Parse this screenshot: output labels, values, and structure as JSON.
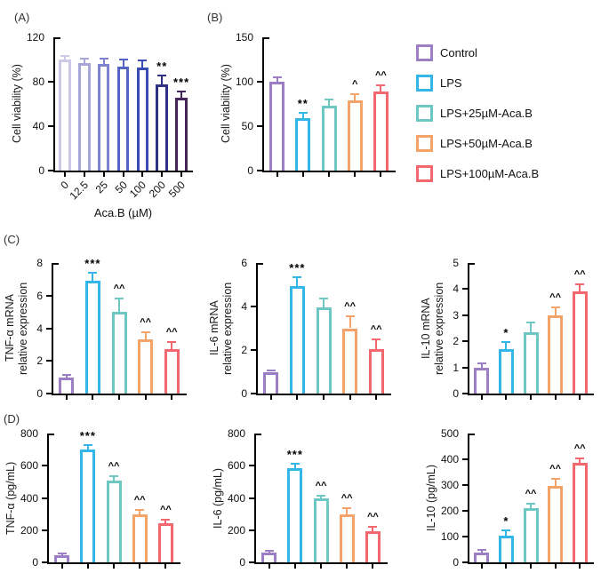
{
  "figure": {
    "panels": {
      "a": "(A)",
      "b": "(B)",
      "c": "(C)",
      "d": "(D)"
    }
  },
  "legend": {
    "items": [
      {
        "label": "Control",
        "color": "#9b7ec3"
      },
      {
        "label": "LPS",
        "color": "#35b6e9"
      },
      {
        "label": "LPS+25µM-Aca.B",
        "color": "#6fc7c3"
      },
      {
        "label": "LPS+50µM-Aca.B",
        "color": "#f5a469"
      },
      {
        "label": "LPS+100µM-Aca.B",
        "color": "#f1686e"
      }
    ]
  },
  "chart_data": [
    {
      "id": "A",
      "type": "bar",
      "title": "",
      "ylabel": "Cell viability (%)",
      "ylabel2": "",
      "xlabel": "Aca.B (µM)",
      "categories": [
        "0",
        "12.5",
        "25",
        "50",
        "100",
        "200",
        "500"
      ],
      "values": [
        100,
        97,
        96,
        94,
        93,
        78,
        66
      ],
      "errors": [
        3,
        4,
        5,
        6,
        6,
        8,
        5
      ],
      "annotations": [
        "",
        "",
        "",
        "",
        "",
        "**",
        "***"
      ],
      "colors": [
        "#cdc9e6",
        "#a8a6d8",
        "#7e82cf",
        "#5563c2",
        "#3b4bb4",
        "#2d3084",
        "#45265b"
      ],
      "ylim": [
        0,
        120
      ],
      "yticks": [
        0,
        40,
        80,
        120
      ],
      "xticklabels_visible": true,
      "xticklabel_rotation": 45,
      "grid": false
    },
    {
      "id": "B",
      "type": "bar",
      "title": "",
      "ylabel": "Cell viability (%)",
      "ylabel2": "",
      "xlabel": "",
      "categories": [
        "Control",
        "LPS",
        "LPS+25µM-Aca.B",
        "LPS+50µM-Aca.B",
        "LPS+100µM-Aca.B"
      ],
      "values": [
        100,
        59,
        73,
        79,
        89
      ],
      "errors": [
        5,
        6,
        7,
        7,
        7
      ],
      "annotations": [
        "",
        "**",
        "",
        "^",
        "^^"
      ],
      "colors": [
        "#9b7ec3",
        "#35b6e9",
        "#6fc7c3",
        "#f5a469",
        "#f1686e"
      ],
      "ylim": [
        0,
        150
      ],
      "yticks": [
        0,
        50,
        100,
        150
      ],
      "xticklabels_visible": false,
      "xticklabel_rotation": 0,
      "grid": false
    },
    {
      "id": "C1",
      "type": "bar",
      "title": "",
      "ylabel": "TNF-α mRNA",
      "ylabel2": "relative expression",
      "xlabel": "",
      "categories": [
        "Control",
        "LPS",
        "LPS+25µM-Aca.B",
        "LPS+50µM-Aca.B",
        "LPS+100µM-Aca.B"
      ],
      "values": [
        1.0,
        6.9,
        5.0,
        3.3,
        2.7
      ],
      "errors": [
        0.15,
        0.5,
        0.8,
        0.45,
        0.45
      ],
      "annotations": [
        "",
        "***",
        "^^",
        "^^",
        "^^"
      ],
      "colors": [
        "#9b7ec3",
        "#35b6e9",
        "#6fc7c3",
        "#f5a469",
        "#f1686e"
      ],
      "ylim": [
        0,
        8
      ],
      "yticks": [
        0,
        2,
        4,
        6,
        8
      ],
      "xticklabels_visible": false,
      "xticklabel_rotation": 0,
      "grid": false
    },
    {
      "id": "C2",
      "type": "bar",
      "title": "",
      "ylabel": "IL-6 mRNA",
      "ylabel2": "relative expression",
      "xlabel": "",
      "categories": [
        "Control",
        "LPS",
        "LPS+25µM-Aca.B",
        "LPS+50µM-Aca.B",
        "LPS+100µM-Aca.B"
      ],
      "values": [
        1.0,
        4.95,
        3.95,
        3.0,
        2.05
      ],
      "errors": [
        0.07,
        0.4,
        0.4,
        0.55,
        0.45
      ],
      "annotations": [
        "",
        "***",
        "",
        "^^",
        "^^"
      ],
      "colors": [
        "#9b7ec3",
        "#35b6e9",
        "#6fc7c3",
        "#f5a469",
        "#f1686e"
      ],
      "ylim": [
        0,
        6
      ],
      "yticks": [
        0,
        2,
        4,
        6
      ],
      "xticklabels_visible": false,
      "xticklabel_rotation": 0,
      "grid": false
    },
    {
      "id": "C3",
      "type": "bar",
      "title": "",
      "ylabel": "IL-10 mRNA",
      "ylabel2": "relative expression",
      "xlabel": "",
      "categories": [
        "Control",
        "LPS",
        "LPS+25µM-Aca.B",
        "LPS+50µM-Aca.B",
        "LPS+100µM-Aca.B"
      ],
      "values": [
        1.0,
        1.7,
        2.35,
        3.0,
        3.9
      ],
      "errors": [
        0.17,
        0.27,
        0.37,
        0.3,
        0.3
      ],
      "annotations": [
        "",
        "*",
        "",
        "^^",
        "^^"
      ],
      "colors": [
        "#9b7ec3",
        "#35b6e9",
        "#6fc7c3",
        "#f5a469",
        "#f1686e"
      ],
      "ylim": [
        0,
        5
      ],
      "yticks": [
        0,
        1,
        2,
        3,
        4,
        5
      ],
      "xticklabels_visible": false,
      "xticklabel_rotation": 0,
      "grid": false
    },
    {
      "id": "D1",
      "type": "bar",
      "title": "",
      "ylabel": "TNF-α (pg/mL)",
      "ylabel2": "",
      "xlabel": "",
      "categories": [
        "Control",
        "LPS",
        "LPS+25µM-Aca.B",
        "LPS+50µM-Aca.B",
        "LPS+100µM-Aca.B"
      ],
      "values": [
        45,
        700,
        505,
        300,
        245
      ],
      "errors": [
        8,
        30,
        30,
        25,
        20
      ],
      "annotations": [
        "",
        "***",
        "^^",
        "^^",
        "^^"
      ],
      "colors": [
        "#9b7ec3",
        "#35b6e9",
        "#6fc7c3",
        "#f5a469",
        "#f1686e"
      ],
      "ylim": [
        0,
        800
      ],
      "yticks": [
        0,
        200,
        400,
        600,
        800
      ],
      "xticklabels_visible": false,
      "xticklabel_rotation": 0,
      "grid": false
    },
    {
      "id": "D2",
      "type": "bar",
      "title": "",
      "ylabel": "IL-6 (pg/mL)",
      "ylabel2": "",
      "xlabel": "",
      "categories": [
        "Control",
        "LPS",
        "LPS+25µM-Aca.B",
        "LPS+50µM-Aca.B",
        "LPS+100µM-Aca.B"
      ],
      "values": [
        60,
        585,
        395,
        300,
        195
      ],
      "errors": [
        10,
        25,
        20,
        35,
        25
      ],
      "annotations": [
        "",
        "***",
        "^^",
        "^^",
        "^^"
      ],
      "colors": [
        "#9b7ec3",
        "#35b6e9",
        "#6fc7c3",
        "#f5a469",
        "#f1686e"
      ],
      "ylim": [
        0,
        800
      ],
      "yticks": [
        0,
        200,
        400,
        600,
        800
      ],
      "xticklabels_visible": false,
      "xticklabel_rotation": 0,
      "grid": false
    },
    {
      "id": "D3",
      "type": "bar",
      "title": "",
      "ylabel": "IL-10 (pg/mL)",
      "ylabel2": "",
      "xlabel": "",
      "categories": [
        "Control",
        "LPS",
        "LPS+25µM-Aca.B",
        "LPS+50µM-Aca.B",
        "LPS+100µM-Aca.B"
      ],
      "values": [
        38,
        105,
        210,
        298,
        385
      ],
      "errors": [
        10,
        18,
        18,
        25,
        18
      ],
      "annotations": [
        "",
        "*",
        "^^",
        "^^",
        "^^"
      ],
      "colors": [
        "#9b7ec3",
        "#35b6e9",
        "#6fc7c3",
        "#f5a469",
        "#f1686e"
      ],
      "ylim": [
        0,
        500
      ],
      "yticks": [
        0,
        100,
        200,
        300,
        400,
        500
      ],
      "xticklabels_visible": false,
      "xticklabel_rotation": 0,
      "grid": false
    }
  ]
}
